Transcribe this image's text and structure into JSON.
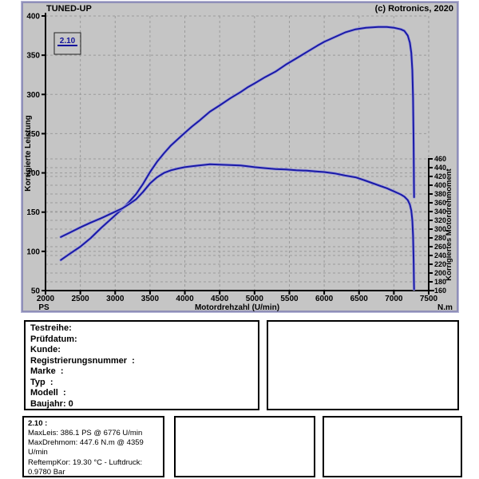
{
  "window": {
    "copyright": "(c) Rotronics, 2020"
  },
  "colors": {
    "window_bg": "#c5c5c5",
    "window_border": "#8f8fb8",
    "grid": "#9b9b9b",
    "axis": "#000000",
    "curve": "#1a1aa6",
    "curve_halo": "#9f9fd8",
    "legend_text": "#14149c",
    "box_border": "#000000"
  },
  "chart_data": {
    "type": "line",
    "title": "TUNED-UP",
    "xlabel": "Motordrehzahl (U/min)",
    "x_unit_label": "PS",
    "right_unit_label": "N.m",
    "ylabel_left": "Korrigierte Leistung",
    "ylabel_right": "Korrigiertes Motordrehmoment",
    "x_range": [
      2000,
      7500
    ],
    "x_tick_step": 500,
    "y_left_range": [
      50,
      400
    ],
    "y_left_tick_step": 50,
    "y_right_range": [
      160,
      460
    ],
    "y_right_tick_step": 20,
    "grid": true,
    "legend": {
      "label": "2.10",
      "position": "top-left"
    },
    "series": [
      {
        "name": "corrected-power",
        "unit": "PS",
        "axis": "left",
        "points": [
          [
            2220,
            89
          ],
          [
            2350,
            97
          ],
          [
            2500,
            106
          ],
          [
            2650,
            117
          ],
          [
            2800,
            130
          ],
          [
            2950,
            142
          ],
          [
            3100,
            154
          ],
          [
            3200,
            163
          ],
          [
            3300,
            173
          ],
          [
            3400,
            186
          ],
          [
            3500,
            201
          ],
          [
            3600,
            214
          ],
          [
            3700,
            225
          ],
          [
            3800,
            235
          ],
          [
            3900,
            243
          ],
          [
            4000,
            251
          ],
          [
            4100,
            259
          ],
          [
            4200,
            266
          ],
          [
            4359,
            278
          ],
          [
            4500,
            286
          ],
          [
            4650,
            295
          ],
          [
            4800,
            303
          ],
          [
            4900,
            309
          ],
          [
            5000,
            314
          ],
          [
            5150,
            322
          ],
          [
            5300,
            329
          ],
          [
            5450,
            338
          ],
          [
            5600,
            346
          ],
          [
            5750,
            354
          ],
          [
            5900,
            362
          ],
          [
            6000,
            367
          ],
          [
            6150,
            373
          ],
          [
            6300,
            379
          ],
          [
            6450,
            383
          ],
          [
            6600,
            385
          ],
          [
            6776,
            386.1
          ],
          [
            6900,
            386
          ],
          [
            7000,
            385
          ],
          [
            7100,
            383
          ],
          [
            7150,
            381
          ],
          [
            7200,
            375
          ],
          [
            7230,
            366
          ],
          [
            7250,
            353
          ],
          [
            7265,
            331
          ],
          [
            7275,
            295
          ],
          [
            7283,
            238
          ],
          [
            7288,
            187
          ],
          [
            7290,
            169
          ]
        ]
      },
      {
        "name": "corrected-torque",
        "unit": "N.m",
        "axis": "right",
        "points": [
          [
            2220,
            282
          ],
          [
            2350,
            292
          ],
          [
            2500,
            304
          ],
          [
            2650,
            315
          ],
          [
            2800,
            325
          ],
          [
            2950,
            336
          ],
          [
            3100,
            347
          ],
          [
            3200,
            357
          ],
          [
            3300,
            368
          ],
          [
            3400,
            385
          ],
          [
            3500,
            404
          ],
          [
            3600,
            418
          ],
          [
            3700,
            428
          ],
          [
            3800,
            434
          ],
          [
            3900,
            438
          ],
          [
            4000,
            441
          ],
          [
            4100,
            443
          ],
          [
            4200,
            445
          ],
          [
            4359,
            447.6
          ],
          [
            4500,
            447
          ],
          [
            4650,
            446
          ],
          [
            4800,
            445
          ],
          [
            4900,
            443
          ],
          [
            5000,
            441
          ],
          [
            5150,
            439
          ],
          [
            5300,
            437
          ],
          [
            5450,
            436
          ],
          [
            5600,
            434
          ],
          [
            5750,
            433
          ],
          [
            5900,
            431
          ],
          [
            6000,
            430
          ],
          [
            6150,
            427
          ],
          [
            6300,
            422
          ],
          [
            6450,
            418
          ],
          [
            6600,
            410
          ],
          [
            6776,
            400
          ],
          [
            6900,
            393
          ],
          [
            7000,
            386
          ],
          [
            7100,
            379
          ],
          [
            7150,
            374
          ],
          [
            7200,
            366
          ],
          [
            7230,
            356
          ],
          [
            7250,
            342
          ],
          [
            7265,
            320
          ],
          [
            7275,
            285
          ],
          [
            7283,
            230
          ],
          [
            7288,
            180
          ],
          [
            7290,
            163
          ]
        ]
      }
    ]
  },
  "info_box": {
    "lines": [
      "Testreihe:",
      "Prüfdatum:",
      "Kunde:",
      "Registrierungsnummer  :",
      "Marke  :",
      "Typ  :",
      "Modell  :",
      "Baujahr: 0"
    ]
  },
  "result_box": {
    "title": "2.10 :",
    "lines": [
      "MaxLeis: 386.1 PS @ 6776 U/min",
      "MaxDrehmom: 447.6 N.m @ 4359",
      "U/min",
      "ReftempKor: 19.30 °C - Luftdruck:",
      "0.9780 Bar"
    ]
  }
}
